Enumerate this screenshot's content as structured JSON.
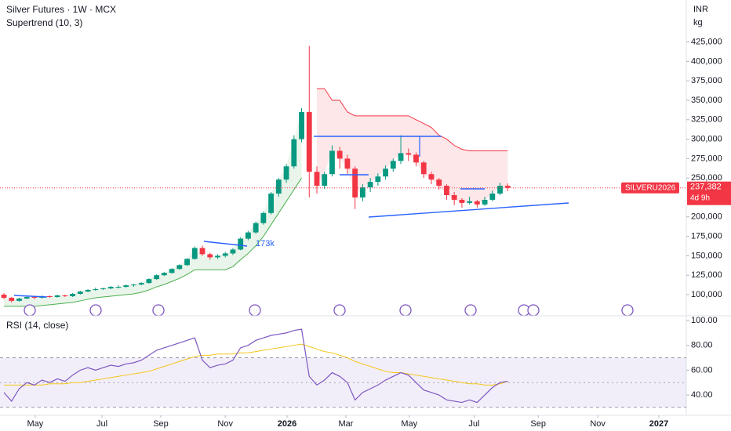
{
  "chart_data": {
    "type": "candlestick",
    "title": "Silver Futures · 1W · MCX",
    "indicator": "Supertrend (10, 3)",
    "currency": "INR",
    "unit": "kg",
    "symbol": "SILVERU2026",
    "last_value_label": "237,382",
    "countdown": "4d 9h",
    "annotation": "173k",
    "up_color": "#089981",
    "down_color": "#f23645",
    "xlim": [
      -0.514,
      89.4
    ],
    "xticks": [
      {
        "value": 4.1,
        "label": "May"
      },
      {
        "value": 12.85,
        "label": "Jul"
      },
      {
        "value": 20.55,
        "label": "Sep"
      },
      {
        "value": 29,
        "label": "Nov"
      },
      {
        "value": 37.1,
        "label": "2026"
      },
      {
        "value": 44.8,
        "label": "Mar"
      },
      {
        "value": 53.1,
        "label": "May"
      },
      {
        "value": 61.6,
        "label": "Jul"
      },
      {
        "value": 70,
        "label": "Sep"
      },
      {
        "value": 77.8,
        "label": "Nov"
      },
      {
        "value": 85.8,
        "label": "2027"
      }
    ],
    "ylim": [
      75800,
      479000
    ],
    "yticks": [
      {
        "value": 100000,
        "label": "100,000"
      },
      {
        "value": 125000,
        "label": "125,000"
      },
      {
        "value": 150000,
        "label": "150,000"
      },
      {
        "value": 175000,
        "label": "175,000"
      },
      {
        "value": 200000,
        "label": "200,000"
      },
      {
        "value": 250000,
        "label": "250,000"
      },
      {
        "value": 275000,
        "label": "275,000"
      },
      {
        "value": 300000,
        "label": "300,000"
      },
      {
        "value": 325000,
        "label": "325,000"
      },
      {
        "value": 350000,
        "label": "350,000"
      },
      {
        "value": 375000,
        "label": "375,000"
      },
      {
        "value": 400000,
        "label": "400,000"
      },
      {
        "value": 425000,
        "label": "425,000"
      }
    ],
    "ohlc": [
      [
        100000,
        102000,
        94000,
        96000
      ],
      [
        96000,
        97000,
        90000,
        92000
      ],
      [
        92000,
        96000,
        91000,
        95000
      ],
      [
        95000,
        98000,
        94000,
        97000
      ],
      [
        97000,
        98000,
        94000,
        96000
      ],
      [
        96000,
        99000,
        95000,
        98000
      ],
      [
        98000,
        99000,
        96000,
        97000
      ],
      [
        97000,
        100000,
        96000,
        99000
      ],
      [
        99000,
        100000,
        97000,
        98000
      ],
      [
        98000,
        102000,
        97000,
        101000
      ],
      [
        101000,
        105000,
        100000,
        104000
      ],
      [
        104000,
        107000,
        103000,
        106000
      ],
      [
        106000,
        109000,
        105000,
        107000
      ],
      [
        107000,
        109000,
        106000,
        108000
      ],
      [
        108000,
        111000,
        107000,
        110000
      ],
      [
        110000,
        112000,
        108000,
        110000
      ],
      [
        110000,
        113000,
        109000,
        112000
      ],
      [
        112000,
        114000,
        110000,
        113000
      ],
      [
        113000,
        116000,
        112000,
        115000
      ],
      [
        115000,
        121000,
        114000,
        120000
      ],
      [
        120000,
        126000,
        119000,
        125000
      ],
      [
        125000,
        129000,
        124000,
        128000
      ],
      [
        128000,
        134000,
        127000,
        133000
      ],
      [
        133000,
        139000,
        132000,
        138000
      ],
      [
        138000,
        147000,
        137000,
        146000
      ],
      [
        146000,
        162000,
        145000,
        160000
      ],
      [
        160000,
        163000,
        150000,
        152000
      ],
      [
        152000,
        154000,
        145000,
        148000
      ],
      [
        148000,
        152000,
        146000,
        150000
      ],
      [
        150000,
        155000,
        148000,
        153000
      ],
      [
        153000,
        160000,
        151000,
        158000
      ],
      [
        158000,
        174000,
        157000,
        172000
      ],
      [
        172000,
        182000,
        170000,
        180000
      ],
      [
        180000,
        194000,
        178000,
        192000
      ],
      [
        192000,
        207000,
        190000,
        205000
      ],
      [
        205000,
        232000,
        203000,
        230000
      ],
      [
        230000,
        250000,
        226000,
        248000
      ],
      [
        248000,
        268000,
        244000,
        265000
      ],
      [
        265000,
        305000,
        262000,
        300000
      ],
      [
        300000,
        340000,
        296000,
        335000
      ],
      [
        335000,
        420000,
        225000,
        258000
      ],
      [
        258000,
        265000,
        230000,
        240000
      ],
      [
        240000,
        258000,
        236000,
        255000
      ],
      [
        255000,
        292000,
        252000,
        285000
      ],
      [
        285000,
        290000,
        262000,
        275000
      ],
      [
        275000,
        280000,
        255000,
        262000
      ],
      [
        262000,
        265000,
        210000,
        225000
      ],
      [
        225000,
        242000,
        220000,
        238000
      ],
      [
        238000,
        250000,
        232000,
        245000
      ],
      [
        245000,
        256000,
        240000,
        252000
      ],
      [
        252000,
        266000,
        248000,
        262000
      ],
      [
        262000,
        275000,
        258000,
        272000
      ],
      [
        272000,
        305000,
        268000,
        282000
      ],
      [
        282000,
        288000,
        272000,
        280000
      ],
      [
        280000,
        283000,
        265000,
        270000
      ],
      [
        270000,
        272000,
        250000,
        255000
      ],
      [
        255000,
        258000,
        242000,
        248000
      ],
      [
        248000,
        250000,
        235000,
        240000
      ],
      [
        240000,
        242000,
        222000,
        228000
      ],
      [
        228000,
        232000,
        215000,
        222000
      ],
      [
        222000,
        224000,
        212000,
        218000
      ],
      [
        218000,
        226000,
        216000,
        220000
      ],
      [
        220000,
        222000,
        212000,
        216000
      ],
      [
        216000,
        226000,
        214000,
        222000
      ],
      [
        222000,
        234000,
        220000,
        230000
      ],
      [
        230000,
        244000,
        228000,
        240000
      ],
      [
        240000,
        243000,
        233000,
        237382
      ]
    ],
    "supertrend_up": {
      "color": "#4caf50",
      "fill": "rgba(76,175,80,0.12)",
      "values": [
        85000,
        85000,
        85000,
        85000,
        85000,
        86000,
        87000,
        88000,
        89000,
        90000,
        92000,
        94000,
        96000,
        97000,
        98000,
        99000,
        100000,
        101000,
        103000,
        106000,
        110000,
        113000,
        117000,
        121000,
        126000,
        132000,
        132000,
        132000,
        132000,
        132000,
        136000,
        145000,
        153000,
        163000,
        175000,
        190000,
        205000,
        220000,
        235000,
        250000,
        null,
        null,
        null,
        null,
        null,
        null,
        null,
        null,
        null,
        null,
        null,
        null,
        null,
        null,
        null,
        null,
        null,
        null,
        null,
        null,
        null,
        null,
        null,
        null,
        null,
        null,
        null
      ]
    },
    "supertrend_down": {
      "color": "#f23645",
      "fill": "rgba(242,54,69,0.12)",
      "values": [
        null,
        null,
        null,
        null,
        null,
        null,
        null,
        null,
        null,
        null,
        null,
        null,
        null,
        null,
        null,
        null,
        null,
        null,
        null,
        null,
        null,
        null,
        null,
        null,
        null,
        null,
        null,
        null,
        null,
        null,
        null,
        null,
        null,
        null,
        null,
        null,
        null,
        null,
        null,
        null,
        null,
        365000,
        365000,
        350000,
        350000,
        335000,
        330000,
        330000,
        330000,
        330000,
        330000,
        330000,
        330000,
        330000,
        325000,
        320000,
        315000,
        305000,
        300000,
        292000,
        287000,
        285000,
        285000,
        285000,
        285000,
        285000,
        285000
      ]
    },
    "rsi": {
      "title": "RSI (14, close)",
      "color": "#7e57c2",
      "ma_color": "#f5c518",
      "ylim": [
        23.6,
        103.8
      ],
      "yticks": [
        {
          "value": 100,
          "label": "100.00"
        },
        {
          "value": 80,
          "label": "80.00"
        },
        {
          "value": 60,
          "label": "60.00"
        },
        {
          "value": 40,
          "label": "40.00"
        }
      ],
      "band": [
        30,
        70
      ],
      "mid": 50,
      "values": [
        42,
        35,
        45,
        50,
        48,
        52,
        50,
        53,
        51,
        56,
        60,
        62,
        60,
        62,
        64,
        63,
        65,
        66,
        68,
        72,
        76,
        78,
        80,
        82,
        84,
        86,
        68,
        62,
        64,
        65,
        68,
        78,
        80,
        84,
        86,
        88,
        89,
        90,
        92,
        93,
        55,
        48,
        52,
        58,
        55,
        50,
        36,
        42,
        45,
        48,
        52,
        55,
        58,
        56,
        50,
        44,
        42,
        40,
        36,
        35,
        34,
        36,
        34,
        40,
        46,
        50,
        51
      ],
      "ma": [
        48,
        48,
        48,
        48,
        48,
        48,
        49,
        49,
        49,
        50,
        50,
        51,
        52,
        53,
        54,
        55,
        56,
        57,
        58,
        59,
        61,
        63,
        65,
        67,
        69,
        71,
        72,
        72,
        73,
        73,
        73,
        74,
        74,
        75,
        76,
        77,
        78,
        79,
        80,
        81,
        79,
        77,
        75,
        74,
        72,
        70,
        67,
        65,
        63,
        61,
        59,
        58,
        58,
        57,
        56,
        55,
        54,
        53,
        52,
        51,
        50,
        49,
        49,
        48,
        48,
        49,
        51
      ]
    }
  }
}
